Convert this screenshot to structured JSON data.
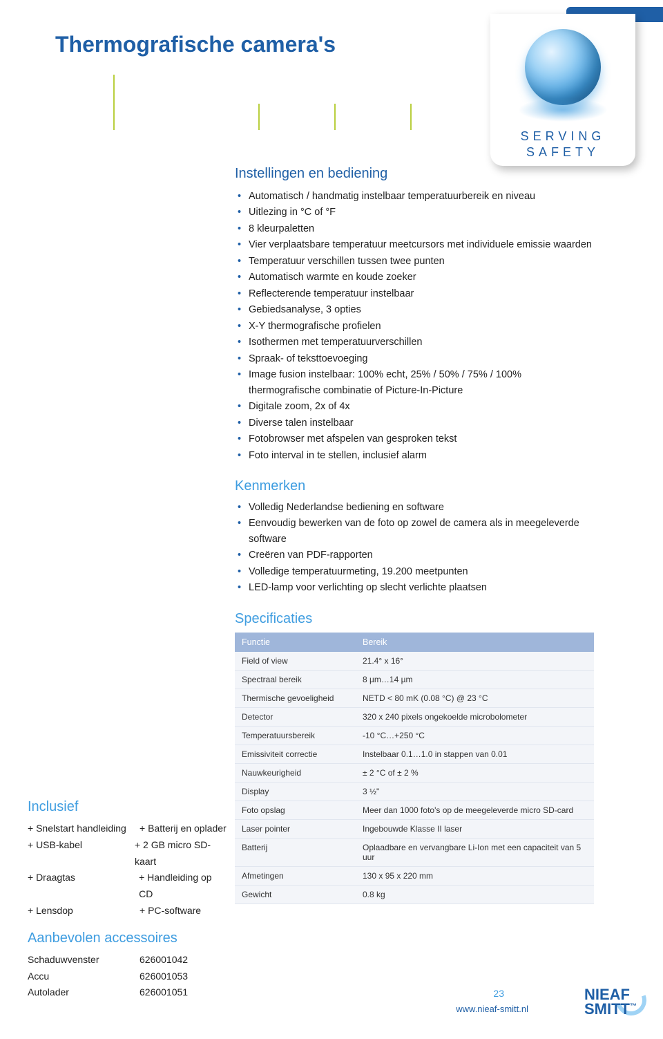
{
  "badge": {
    "line1": "SERVING",
    "line2": "SAFETY"
  },
  "page_title": "Thermografische camera's",
  "section_settings_title": "Instellingen en bediening",
  "settings_items": [
    "Automatisch / handmatig instelbaar temperatuurbereik en niveau",
    "Uitlezing in °C of °F",
    "8 kleurpaletten",
    "Vier verplaatsbare temperatuur meetcursors met individuele emissie waarden",
    "Temperatuur verschillen tussen twee punten",
    "Automatisch warmte en koude zoeker",
    "Reflecterende temperatuur instelbaar",
    "Gebiedsanalyse, 3 opties",
    "X-Y thermografische profielen",
    "Isothermen met temperatuurverschillen",
    "Spraak- of teksttoevoeging",
    "Image fusion instelbaar: 100% echt, 25% / 50% / 75% / 100% thermografische combinatie of Picture-In-Picture",
    "Digitale zoom, 2x of 4x",
    "Diverse talen instelbaar",
    "Fotobrowser met afspelen van gesproken tekst",
    "Foto interval in te stellen, inclusief alarm"
  ],
  "section_features_title": "Kenmerken",
  "features_items": [
    "Volledig Nederlandse bediening en software",
    "Eenvoudig bewerken van de foto op zowel de camera als in meegeleverde software",
    "Creëren van PDF-rapporten",
    "Volledige temperatuurmeting, 19.200 meetpunten",
    "LED-lamp voor verlichting op slecht verlichte plaatsen"
  ],
  "section_specs_title": "Specificaties",
  "spec_headers": {
    "col1": "Functie",
    "col2": "Bereik"
  },
  "spec_rows": [
    {
      "k": "Field of view",
      "v": "21.4° x 16°"
    },
    {
      "k": "Spectraal bereik",
      "v": "8 µm…14 µm"
    },
    {
      "k": "Thermische gevoeligheid",
      "v": "NETD < 80 mK (0.08 °C) @ 23 °C"
    },
    {
      "k": "Detector",
      "v": "320 x 240 pixels ongekoelde microbolometer"
    },
    {
      "k": "Temperatuursbereik",
      "v": "-10 °C…+250 °C"
    },
    {
      "k": "Emissiviteit correctie",
      "v": "Instelbaar 0.1…1.0 in stappen van 0.01"
    },
    {
      "k": "Nauwkeurigheid",
      "v": "± 2 °C of ± 2 %"
    },
    {
      "k": "Display",
      "v": "3 ½\""
    },
    {
      "k": "Foto opslag",
      "v": "Meer dan 1000 foto's op de meegeleverde micro SD-card"
    },
    {
      "k": "Laser pointer",
      "v": "Ingebouwde Klasse II laser"
    },
    {
      "k": "Batterij",
      "v": "Oplaadbare en vervangbare Li-Ion met een capaciteit van 5 uur"
    },
    {
      "k": "Afmetingen",
      "v": "130 x 95 x 220 mm"
    },
    {
      "k": "Gewicht",
      "v": "0.8 kg"
    }
  ],
  "section_inclusief_title": "Inclusief",
  "inclusief_rows": [
    {
      "l": "+ Snelstart handleiding",
      "r": "+ Batterij en oplader"
    },
    {
      "l": "+ USB-kabel",
      "r": "+ 2 GB micro SD-kaart"
    },
    {
      "l": "+ Draagtas",
      "r": "+ Handleiding op CD"
    },
    {
      "l": "+ Lensdop",
      "r": "+ PC-software"
    }
  ],
  "section_accessoires_title": "Aanbevolen accessoires",
  "accessoires_rows": [
    {
      "l": "Schaduwvenster",
      "r": "626001042"
    },
    {
      "l": "Accu",
      "r": "626001053"
    },
    {
      "l": "Autolader",
      "r": "626001051"
    }
  ],
  "footer": {
    "page": "23",
    "url": "www.nieaf-smitt.nl",
    "logo1": "NIEAF",
    "logo2": "SMITT"
  },
  "colors": {
    "brand_blue": "#1f5fa6",
    "accent_blue": "#3f9de0",
    "lime": "#b9cf3e",
    "table_header": "#9fb6da",
    "table_bg": "#f3f5f9"
  }
}
